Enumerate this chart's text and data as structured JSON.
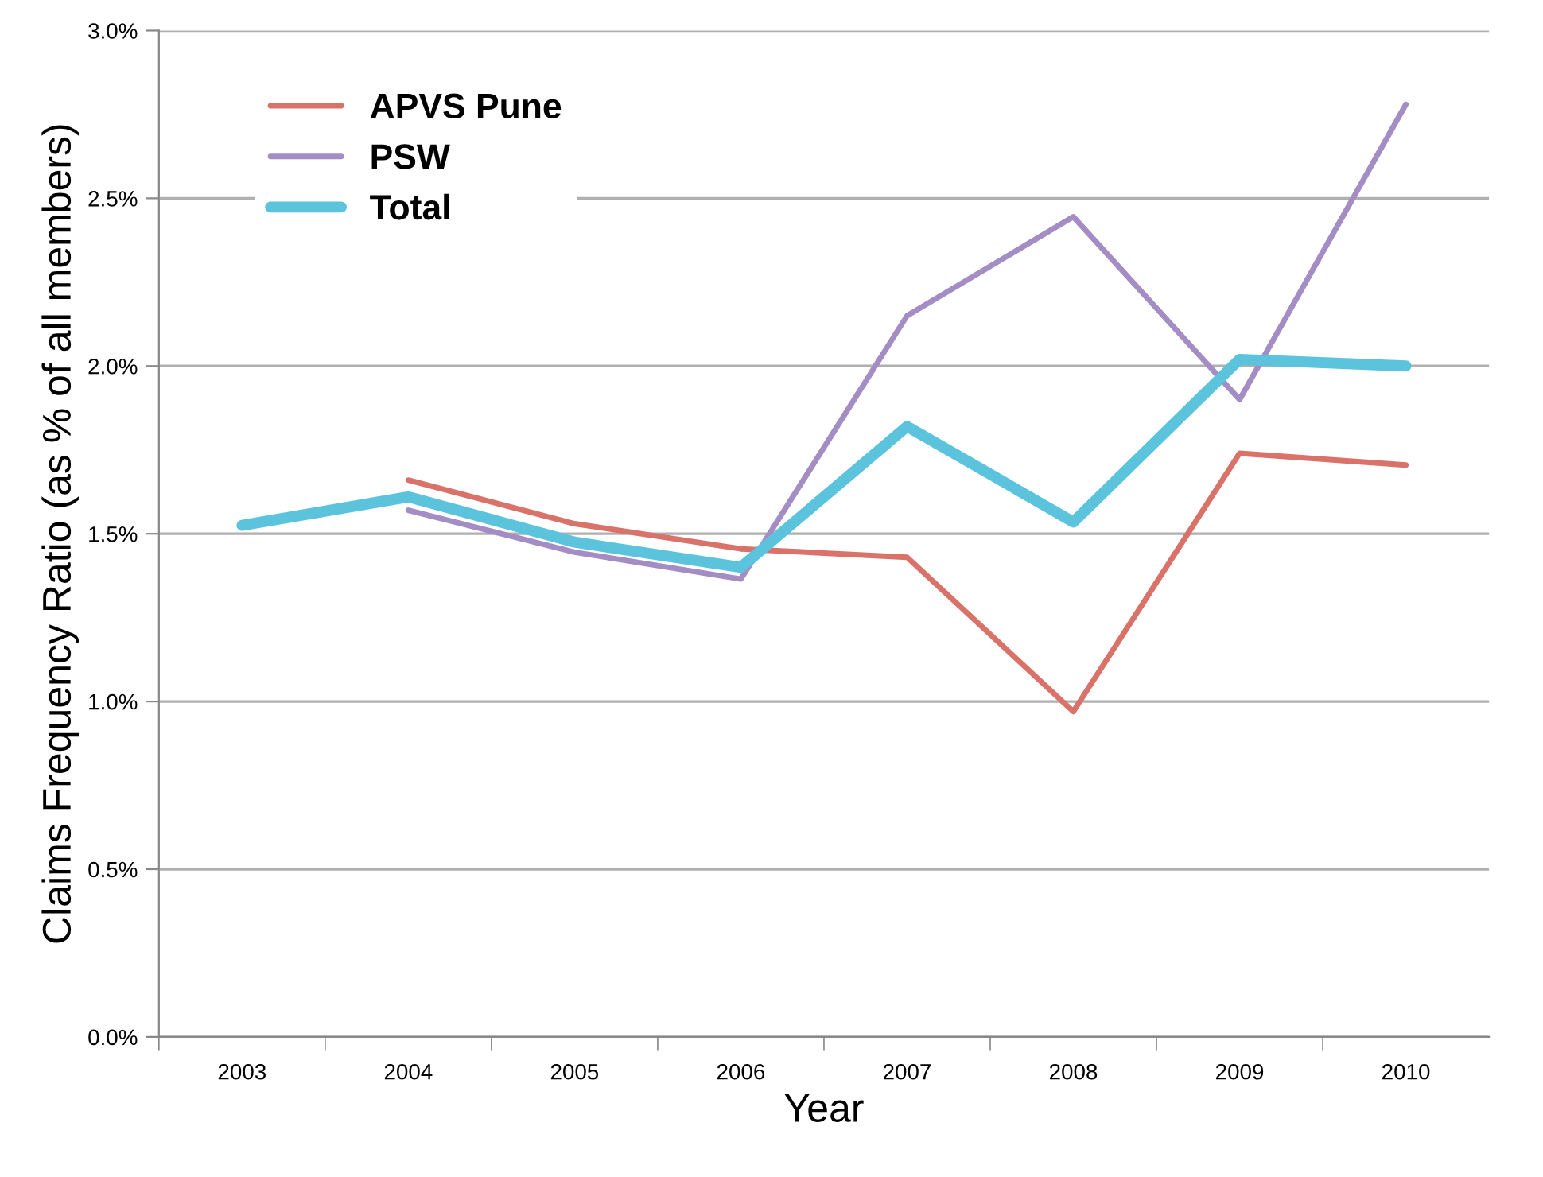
{
  "chart_data": {
    "type": "line",
    "xlabel": "Year",
    "ylabel": "Claims Frequency Ratio (as % of all members)",
    "categories": [
      "2003",
      "2004",
      "2005",
      "2006",
      "2007",
      "2008",
      "2009",
      "2010"
    ],
    "series": [
      {
        "name": "APVS Pune",
        "color": "#d9736a",
        "values": [
          null,
          1.66,
          1.53,
          1.455,
          1.43,
          0.97,
          1.74,
          1.705
        ]
      },
      {
        "name": "PSW",
        "color": "#a48cc4",
        "values": [
          null,
          1.57,
          1.445,
          1.365,
          2.15,
          2.445,
          1.9,
          2.78
        ]
      },
      {
        "name": "Total",
        "color": "#5bc4dc",
        "values": [
          1.525,
          1.61,
          1.475,
          1.4,
          1.82,
          1.535,
          2.02,
          2.0
        ]
      }
    ],
    "ylim": [
      0,
      3
    ],
    "yticks": [
      {
        "value": 0,
        "label": "0.0%"
      },
      {
        "value": 0.5,
        "label": "0.5%"
      },
      {
        "value": 1,
        "label": "1.0%"
      },
      {
        "value": 1.5,
        "label": "1.5%"
      },
      {
        "value": 2,
        "label": "2.0%"
      },
      {
        "value": 2.5,
        "label": "2.5%"
      },
      {
        "value": 3,
        "label": "3.0%"
      }
    ],
    "grid": "y",
    "legend": "top left",
    "marker": "none",
    "line_style": "solid"
  }
}
